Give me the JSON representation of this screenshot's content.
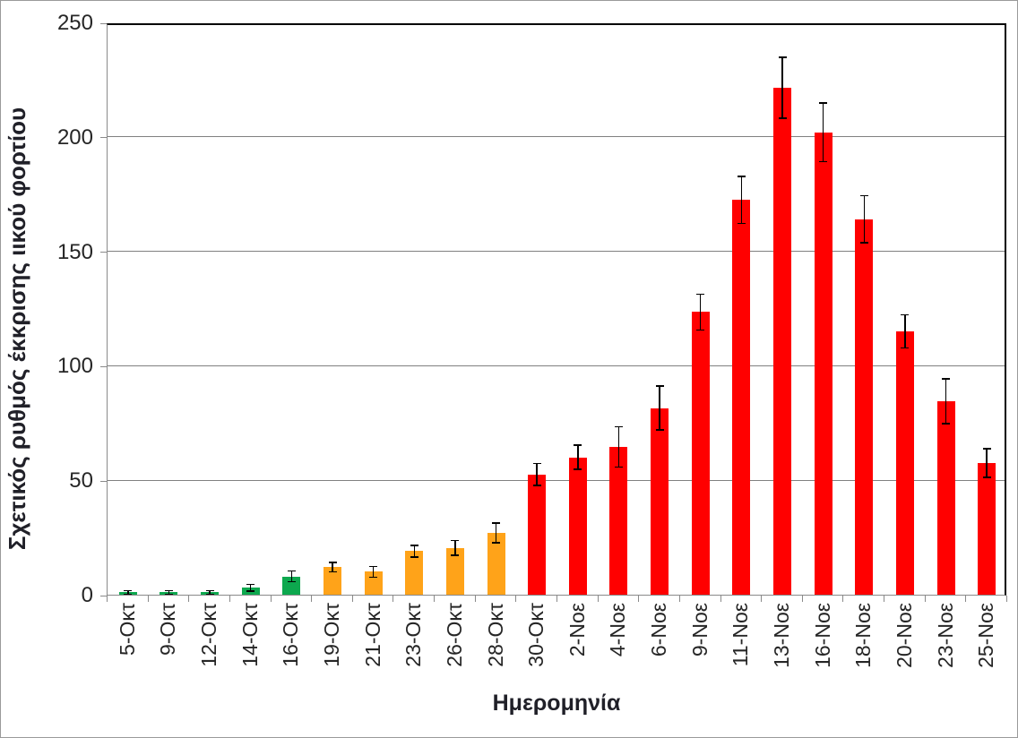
{
  "chart_data": {
    "type": "bar",
    "title": "",
    "xlabel": "Ημερομηνία",
    "ylabel": "Σχετικός ρυθμός έκκρισης ιικού φορτίου",
    "ylim": [
      0,
      250
    ],
    "yticks": [
      0,
      50,
      100,
      150,
      200,
      250
    ],
    "grid": true,
    "legend": "none",
    "categories": [
      "5-Οκτ",
      "9-Οκτ",
      "12-Οκτ",
      "14-Οκτ",
      "16-Οκτ",
      "19-Οκτ",
      "21-Οκτ",
      "23-Οκτ",
      "26-Οκτ",
      "28-Οκτ",
      "30-Οκτ",
      "2-Νοε",
      "4-Νοε",
      "6-Νοε",
      "9-Νοε",
      "11-Νοε",
      "13-Νοε",
      "16-Νοε",
      "18-Νοε",
      "20-Νοε",
      "23-Νοε",
      "25-Νοε"
    ],
    "values": [
      1,
      1,
      1,
      3,
      8,
      12,
      10,
      19,
      20.5,
      27,
      52.5,
      60,
      64.5,
      81.5,
      123.5,
      172.5,
      221.5,
      202,
      164,
      115,
      84.5,
      57.5
    ],
    "errors": [
      0.5,
      0.5,
      0.5,
      1.2,
      2,
      1.8,
      2,
      2.3,
      2.9,
      4,
      4.5,
      5,
      8.5,
      9.3,
      7.5,
      10,
      13,
      12.5,
      10,
      7,
      9.5,
      6
    ],
    "bar_groups": [
      "green",
      "green",
      "green",
      "green",
      "green",
      "orange",
      "orange",
      "orange",
      "orange",
      "orange",
      "red",
      "red",
      "red",
      "red",
      "red",
      "red",
      "red",
      "red",
      "red",
      "red",
      "red",
      "red"
    ],
    "palette": {
      "green": "#0DA84E",
      "orange": "#FFA319",
      "red": "#FF0000"
    },
    "error_bar_color": "#000000",
    "gridline_color": "#808080",
    "axis_line_color": "#8A8A8A",
    "plot_border_color": "#000000",
    "text_color": "#262626"
  }
}
